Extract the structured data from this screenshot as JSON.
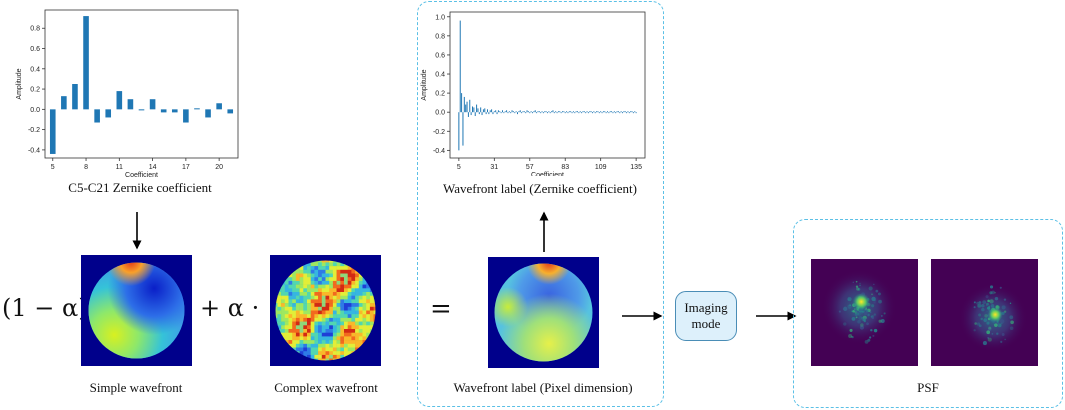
{
  "captions": {
    "zernike_small": "C5-C21 Zernike coefficient",
    "label_zernike": "Wavefront label (Zernike coefficient)",
    "simple": "Simple wavefront",
    "complex": "Complex wavefront",
    "label_pixel": "Wavefront label (Pixel dimension)",
    "psf": "PSF"
  },
  "formula": {
    "left_factor": "(1 − α) ·",
    "plus_factor": "+ α ·",
    "equals": "="
  },
  "imaging_mode": {
    "line1": "Imaging",
    "line2": "mode"
  },
  "colors": {
    "bar": "#1f77b4",
    "dash_border": "#5bc0e6",
    "imaging_fill": "#ddf0fb",
    "wavefront_bg": "#00008b",
    "psf_bg": "#440154"
  },
  "chart_data": [
    {
      "type": "bar",
      "x": [
        5,
        6,
        7,
        8,
        9,
        10,
        11,
        12,
        13,
        14,
        15,
        16,
        17,
        18,
        19,
        20,
        21
      ],
      "values": [
        -0.44,
        0.13,
        0.25,
        0.92,
        -0.13,
        -0.08,
        0.18,
        0.1,
        -0.01,
        0.1,
        -0.03,
        -0.03,
        -0.13,
        0.01,
        -0.08,
        0.06,
        -0.04
      ],
      "xticks": [
        "5",
        "8",
        "11",
        "14",
        "17",
        "20"
      ],
      "yticks": [
        "-0.4",
        "-0.2",
        "0.0",
        "0.2",
        "0.4",
        "0.6",
        "0.8"
      ],
      "xlabel": "Coefficient",
      "ylabel": "Amplitude",
      "xlim": [
        4.3,
        21.7
      ],
      "ylim": [
        -0.48,
        0.98
      ],
      "grid": false
    },
    {
      "type": "bar",
      "x_start": 5,
      "values": [
        -0.4,
        0.96,
        0.2,
        -0.35,
        0.16,
        0.08,
        0.11,
        -0.05,
        0.13,
        -0.03,
        0.06,
        0.05,
        -0.04,
        0.08,
        0.04,
        -0.02,
        0.05,
        -0.03,
        0.03,
        0.04,
        -0.02,
        0.03,
        -0.02,
        0.02,
        0.03,
        -0.02,
        0.01,
        0.02,
        -0.02,
        0.02,
        0.01,
        -0.01,
        0.02,
        -0.01,
        0.01,
        0.02,
        -0.01,
        0.01,
        -0.01,
        0.02,
        0.01,
        -0.01,
        0.01,
        -0.02,
        0.01,
        0.02,
        -0.01,
        0.01,
        0.01,
        -0.01,
        0.02,
        0.01,
        -0.01,
        0.01,
        -0.01,
        0.01,
        0.02,
        -0.01,
        0.01,
        0.01,
        -0.01,
        0.01,
        -0.01,
        0.01,
        0.01,
        -0.01,
        0.01,
        -0.01,
        0.01,
        0.02,
        -0.01,
        0.01,
        -0.01,
        0.01,
        0.01,
        -0.01,
        0.01,
        0.01,
        -0.01,
        0.01,
        -0.01,
        0.01,
        0.01,
        -0.01,
        0.01,
        -0.01,
        0.01,
        0.01,
        -0.01,
        0.01,
        -0.01,
        0.01,
        0.01,
        -0.01,
        0.01,
        -0.01,
        0.01,
        0.01,
        -0.01,
        0.01,
        -0.01,
        0.01,
        0.01,
        -0.01,
        0.01,
        -0.01,
        0.01,
        0.01,
        -0.01,
        0.01,
        -0.01,
        0.01,
        0.01,
        -0.01,
        0.01,
        -0.01,
        0.01,
        0.01,
        -0.01,
        0.01,
        -0.01,
        0.01,
        0.01,
        -0.01,
        0.01,
        -0.01,
        0.01,
        0.01,
        -0.01,
        0.01,
        -0.01
      ],
      "xticks": [
        "5",
        "31",
        "57",
        "83",
        "109",
        "135"
      ],
      "yticks": [
        "-0.4",
        "-0.2",
        "0.0",
        "0.2",
        "0.4",
        "0.6",
        "0.8",
        "1.0"
      ],
      "xlabel": "Coefficient",
      "ylabel": "Amplitude",
      "xlim": [
        -1.5,
        141.5
      ],
      "ylim": [
        -0.48,
        1.05
      ],
      "grid": false
    }
  ]
}
